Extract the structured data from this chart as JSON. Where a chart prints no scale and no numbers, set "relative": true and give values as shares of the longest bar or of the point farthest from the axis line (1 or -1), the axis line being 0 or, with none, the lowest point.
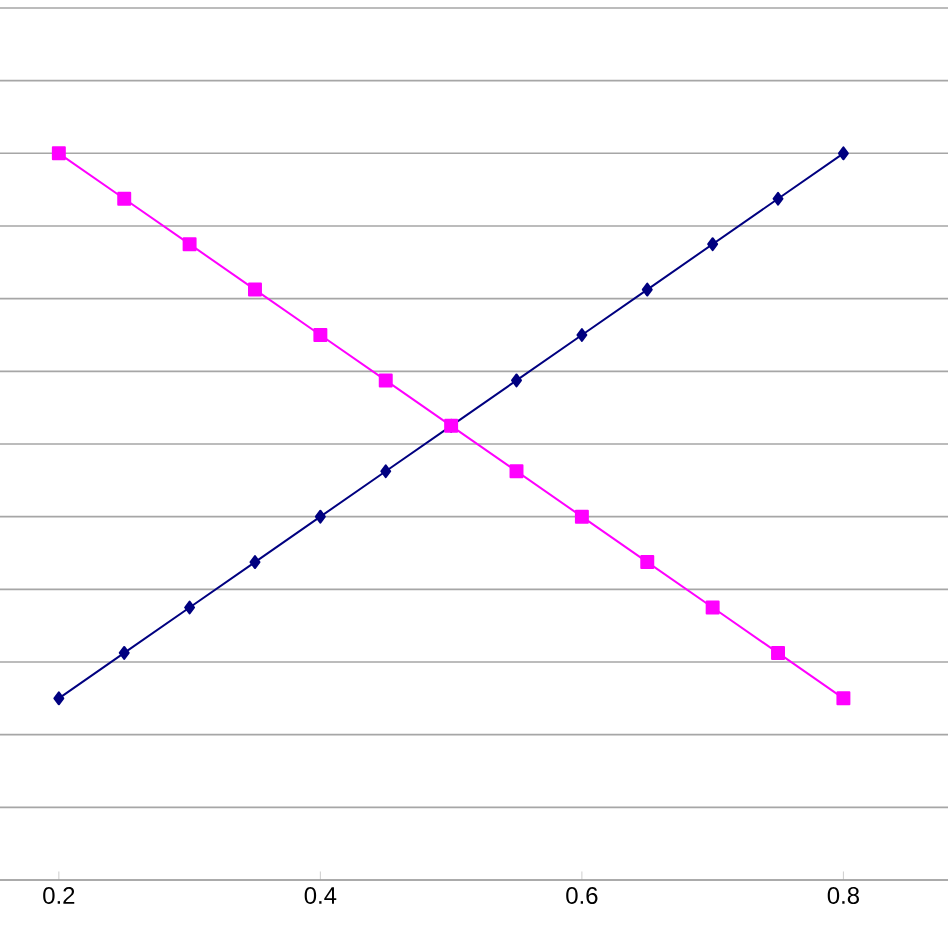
{
  "chart_data": {
    "type": "line",
    "relative": true,
    "x": [
      0.2,
      0.25,
      0.3,
      0.35,
      0.4,
      0.45,
      0.5,
      0.55,
      0.6,
      0.65,
      0.7,
      0.75,
      0.8
    ],
    "xlim": [
      0.155,
      0.88
    ],
    "xticks": [
      0.2,
      0.4,
      0.6,
      0.8
    ],
    "grid": "y",
    "tick_labels": "x",
    "line_style": "solid",
    "series": [
      {
        "color": "#000080",
        "marker": "diamond",
        "values": [
          0.25,
          0.3125,
          0.375,
          0.4375,
          0.5,
          0.5625,
          0.625,
          0.6875,
          0.75,
          0.8125,
          0.875,
          0.9375,
          1
        ]
      },
      {
        "color": "#ff00ff",
        "marker": "square",
        "values": [
          1,
          0.9375,
          0.875,
          0.8125,
          0.75,
          0.6875,
          0.625,
          0.5625,
          0.5,
          0.4375,
          0.375,
          0.3125,
          0.25
        ]
      }
    ]
  }
}
